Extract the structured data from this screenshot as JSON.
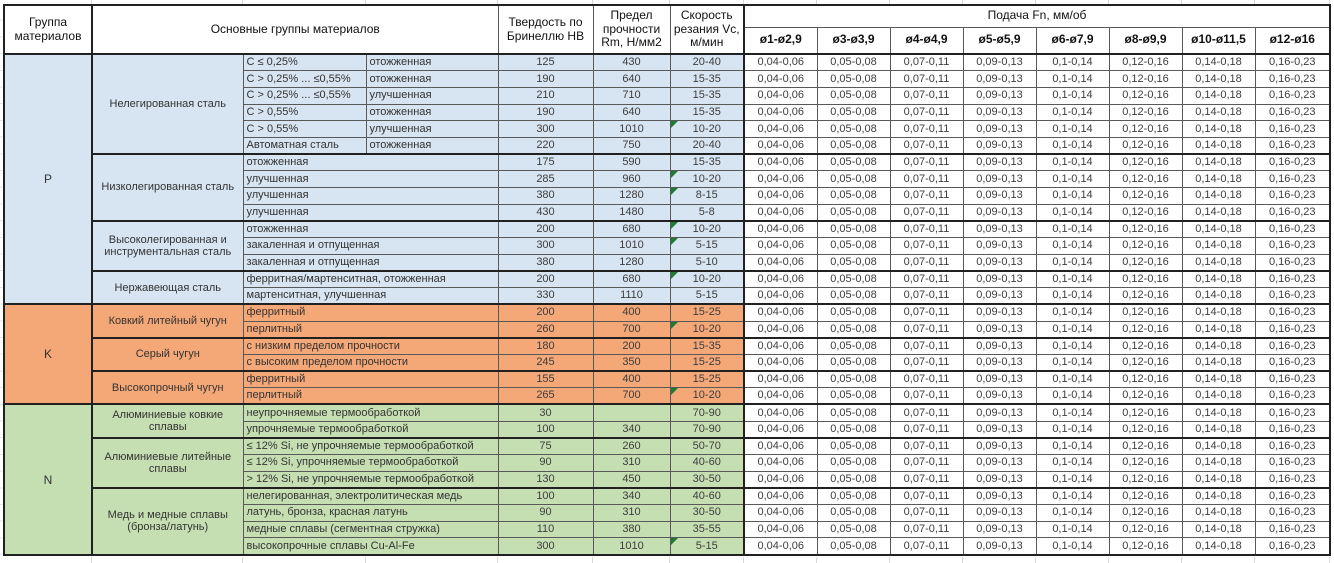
{
  "table": {
    "headers": {
      "group": "Группа материалов",
      "main_groups": "Основные группы материалов",
      "hardness": "Твердость по Бринеллю НВ",
      "strength": "Предел прочности Rm, Н/мм2",
      "speed": "Скорость резания Vc, м/мин",
      "feed": "Подача Fn, мм/об",
      "diameters": [
        "ø1-ø2,9",
        "ø3-ø3,9",
        "ø4-ø4,9",
        "ø5-ø5,9",
        "ø6-ø7,9",
        "ø8-ø9,9",
        "ø10-ø11,5",
        "ø12-ø16"
      ]
    },
    "feed_values": [
      "0,04-0,06",
      "0,05-0,08",
      "0,07-0,11",
      "0,09-0,13",
      "0,1-0,14",
      "0,12-0,16",
      "0,14-0,18",
      "0,16-0,23"
    ],
    "groups": [
      {
        "code": "P",
        "color": "#d7e4f1",
        "subgroups": [
          {
            "name": "Нелегированная сталь",
            "rows": [
              {
                "cond": "C ≤ 0,25%",
                "state": "отожженная",
                "hb": "125",
                "rm": "430",
                "vc": "20-40",
                "flag": false
              },
              {
                "cond": "C > 0,25% ... ≤0,55%",
                "state": "отожженная",
                "hb": "190",
                "rm": "640",
                "vc": "15-35",
                "flag": false
              },
              {
                "cond": "C > 0,25% ... ≤0,55%",
                "state": "улучшенная",
                "hb": "210",
                "rm": "710",
                "vc": "15-35",
                "flag": false
              },
              {
                "cond": "C > 0,55%",
                "state": "отожженная",
                "hb": "190",
                "rm": "640",
                "vc": "15-35",
                "flag": false
              },
              {
                "cond": "C > 0,55%",
                "state": "улучшенная",
                "hb": "300",
                "rm": "1010",
                "vc": "10-20",
                "flag": true
              },
              {
                "cond": "Автоматная сталь",
                "state": "отожженная",
                "hb": "220",
                "rm": "750",
                "vc": "20-40",
                "flag": false
              }
            ]
          },
          {
            "name": "Низколегированная сталь",
            "rows": [
              {
                "desc": "отожженная",
                "hb": "175",
                "rm": "590",
                "vc": "15-35",
                "flag": false
              },
              {
                "desc": "улучшенная",
                "hb": "285",
                "rm": "960",
                "vc": "10-20",
                "flag": true
              },
              {
                "desc": "улучшенная",
                "hb": "380",
                "rm": "1280",
                "vc": "8-15",
                "flag": true
              },
              {
                "desc": "улучшенная",
                "hb": "430",
                "rm": "1480",
                "vc": "5-8",
                "flag": false
              }
            ]
          },
          {
            "name": "Высоколегированная и инструментальная сталь",
            "rows": [
              {
                "desc": "отожженная",
                "hb": "200",
                "rm": "680",
                "vc": "10-20",
                "flag": true
              },
              {
                "desc": "закаленная и отпущенная",
                "hb": "300",
                "rm": "1010",
                "vc": "5-15",
                "flag": true
              },
              {
                "desc": "закаленная и отпущенная",
                "hb": "380",
                "rm": "1280",
                "vc": "5-10",
                "flag": false
              }
            ]
          },
          {
            "name": "Нержавеющая сталь",
            "rows": [
              {
                "desc": "ферритная/мартенситная, отожженная",
                "hb": "200",
                "rm": "680",
                "vc": "10-20",
                "flag": true
              },
              {
                "desc": "мартенситная, улучшенная",
                "hb": "330",
                "rm": "1110",
                "vc": "5-15",
                "flag": false
              }
            ]
          }
        ]
      },
      {
        "code": "K",
        "color": "#f4a777",
        "subgroups": [
          {
            "name": "Ковкий литейный чугун",
            "rows": [
              {
                "desc": "ферритный",
                "hb": "200",
                "rm": "400",
                "vc": "15-25",
                "flag": false
              },
              {
                "desc": "перлитный",
                "hb": "260",
                "rm": "700",
                "vc": "10-20",
                "flag": true
              }
            ]
          },
          {
            "name": "Серый чугун",
            "rows": [
              {
                "desc": "с низким пределом прочности",
                "hb": "180",
                "rm": "200",
                "vc": "15-35",
                "flag": false
              },
              {
                "desc": "с высоким пределом прочности",
                "hb": "245",
                "rm": "350",
                "vc": "15-25",
                "flag": false
              }
            ]
          },
          {
            "name": "Высокопрочный чугун",
            "rows": [
              {
                "desc": "ферритный",
                "hb": "155",
                "rm": "400",
                "vc": "15-25",
                "flag": false
              },
              {
                "desc": "перлитный",
                "hb": "265",
                "rm": "700",
                "vc": "10-20",
                "flag": true
              }
            ]
          }
        ]
      },
      {
        "code": "N",
        "color": "#c5dfb2",
        "subgroups": [
          {
            "name": "Алюминиевые ковкие сплавы",
            "rows": [
              {
                "desc": "неупрочняемые термообработкой",
                "hb": "30",
                "rm": "",
                "vc": "70-90",
                "flag": false
              },
              {
                "desc": "упрочняемые термообработкой",
                "hb": "100",
                "rm": "340",
                "vc": "70-90",
                "flag": false
              }
            ]
          },
          {
            "name": "Алюминиевые литейные сплавы",
            "rows": [
              {
                "desc": "≤ 12% Si, не упрочняемые термообработкой",
                "hb": "75",
                "rm": "260",
                "vc": "50-70",
                "flag": false
              },
              {
                "desc": "≤ 12% Si, упрочняемые термообработкой",
                "hb": "90",
                "rm": "310",
                "vc": "40-60",
                "flag": false
              },
              {
                "desc": "> 12% Si, не упрочняемые термообработкой",
                "hb": "130",
                "rm": "450",
                "vc": "30-50",
                "flag": false
              }
            ]
          },
          {
            "name": "Медь и медные сплавы (бронза/латунь)",
            "rows": [
              {
                "desc": "нелегированная, электролитическая медь",
                "hb": "100",
                "rm": "340",
                "vc": "40-60",
                "flag": false
              },
              {
                "desc": "латунь, бронза, красная латунь",
                "hb": "90",
                "rm": "310",
                "vc": "30-50",
                "flag": false
              },
              {
                "desc": "медные сплавы (сегментная стружка)",
                "hb": "110",
                "rm": "380",
                "vc": "35-55",
                "flag": false
              },
              {
                "desc": "высокопрочные сплавы Cu-Al-Fe",
                "hb": "300",
                "rm": "1010",
                "vc": "5-15",
                "flag": true
              }
            ]
          }
        ]
      }
    ]
  },
  "colors": {
    "group_p": "#d7e4f1",
    "group_k": "#f4a777",
    "group_n": "#c5dfb2",
    "error_flag_green": "#1f7a33",
    "border_strong": "#212121",
    "border_inner": "#595959"
  },
  "icons": {
    "error_flag": "excel-error-flag-triangle"
  }
}
